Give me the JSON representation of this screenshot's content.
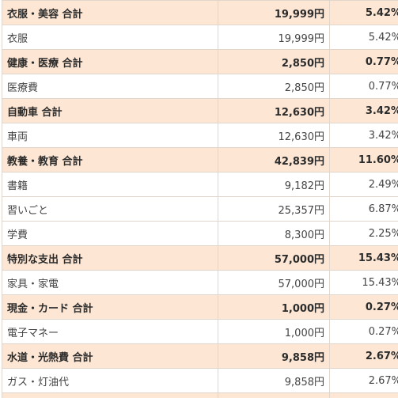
{
  "rows": [
    {
      "type": "total",
      "label": "衣服・美容 合計",
      "amount": "19,999円",
      "percent": "5.42%"
    },
    {
      "type": "item",
      "label": "衣服",
      "amount": "19,999円",
      "percent": "5.42%"
    },
    {
      "type": "total",
      "label": "健康・医療 合計",
      "amount": "2,850円",
      "percent": "0.77%"
    },
    {
      "type": "item",
      "label": "医療費",
      "amount": "2,850円",
      "percent": "0.77%"
    },
    {
      "type": "total",
      "label": "自動車 合計",
      "amount": "12,630円",
      "percent": "3.42%"
    },
    {
      "type": "item",
      "label": "車両",
      "amount": "12,630円",
      "percent": "3.42%"
    },
    {
      "type": "total",
      "label": "教養・教育 合計",
      "amount": "42,839円",
      "percent": "11.60%"
    },
    {
      "type": "item",
      "label": "書籍",
      "amount": "9,182円",
      "percent": "2.49%"
    },
    {
      "type": "item",
      "label": "習いごと",
      "amount": "25,357円",
      "percent": "6.87%"
    },
    {
      "type": "item",
      "label": "学費",
      "amount": "8,300円",
      "percent": "2.25%"
    },
    {
      "type": "total",
      "label": "特別な支出 合計",
      "amount": "57,000円",
      "percent": "15.43%"
    },
    {
      "type": "item",
      "label": "家具・家電",
      "amount": "57,000円",
      "percent": "15.43%"
    },
    {
      "type": "total",
      "label": "現金・カード 合計",
      "amount": "1,000円",
      "percent": "0.27%"
    },
    {
      "type": "item",
      "label": "電子マネー",
      "amount": "1,000円",
      "percent": "0.27%"
    },
    {
      "type": "total",
      "label": "水道・光熱費 合計",
      "amount": "9,858円",
      "percent": "2.67%"
    },
    {
      "type": "item",
      "label": "ガス・灯油代",
      "amount": "9,858円",
      "percent": "2.67%"
    }
  ],
  "colors": {
    "total_row_bg": "#fde6d3",
    "item_row_bg": "#ffffff",
    "border": "#e0d6cc"
  }
}
